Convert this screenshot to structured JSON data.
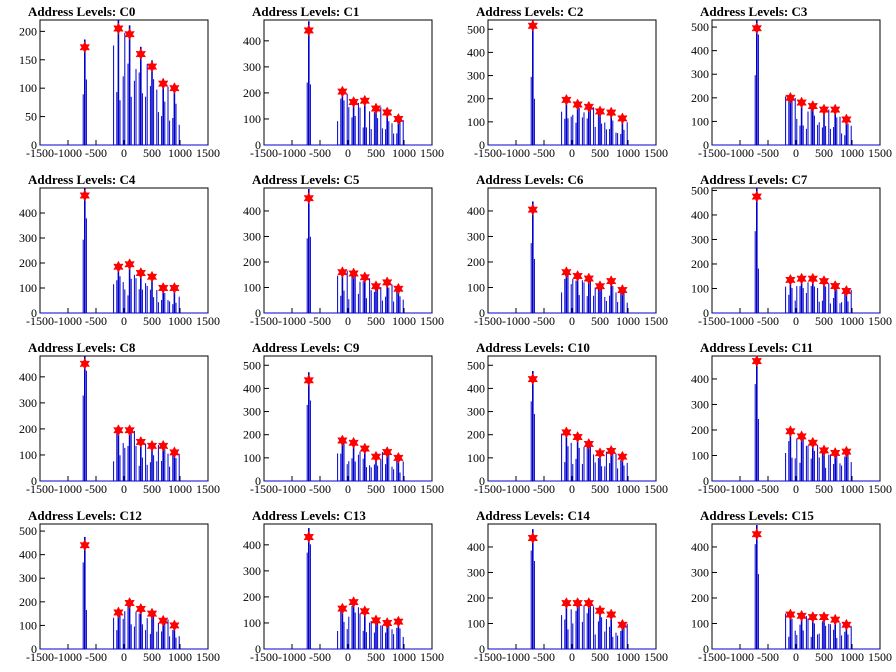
{
  "chart_data": [
    {
      "type": "bar",
      "title": "Address Levels: C0",
      "xlim": [
        -1500,
        1500
      ],
      "ylim": [
        0,
        220
      ],
      "x_ticks": [
        -1500,
        -1000,
        -500,
        0,
        500,
        1000,
        1500
      ],
      "y_ticks": [
        0,
        50,
        100,
        150,
        200
      ],
      "peaks": [
        {
          "x": -700,
          "y": 172
        },
        {
          "x": -100,
          "y": 205
        },
        {
          "x": 100,
          "y": 195
        },
        {
          "x": 300,
          "y": 160
        },
        {
          "x": 500,
          "y": 138
        },
        {
          "x": 700,
          "y": 108
        },
        {
          "x": 900,
          "y": 100
        }
      ],
      "line_color": "#0000cc",
      "marker_color": "#ff0000"
    },
    {
      "type": "bar",
      "title": "Address Levels: C1",
      "xlim": [
        -1500,
        1500
      ],
      "ylim": [
        0,
        480
      ],
      "x_ticks": [
        -1500,
        -1000,
        -500,
        0,
        500,
        1000,
        1500
      ],
      "y_ticks": [
        0,
        100,
        200,
        300,
        400
      ],
      "peaks": [
        {
          "x": -700,
          "y": 440
        },
        {
          "x": -100,
          "y": 205
        },
        {
          "x": 100,
          "y": 165
        },
        {
          "x": 300,
          "y": 170
        },
        {
          "x": 500,
          "y": 140
        },
        {
          "x": 700,
          "y": 125
        },
        {
          "x": 900,
          "y": 100
        }
      ],
      "line_color": "#0000cc",
      "marker_color": "#ff0000"
    },
    {
      "type": "bar",
      "title": "Address Levels: C2",
      "xlim": [
        -1500,
        1500
      ],
      "ylim": [
        0,
        540
      ],
      "x_ticks": [
        -1500,
        -1000,
        -500,
        0,
        500,
        1000,
        1500
      ],
      "y_ticks": [
        0,
        100,
        200,
        300,
        400,
        500
      ],
      "peaks": [
        {
          "x": -700,
          "y": 515
        },
        {
          "x": -100,
          "y": 195
        },
        {
          "x": 100,
          "y": 175
        },
        {
          "x": 300,
          "y": 165
        },
        {
          "x": 500,
          "y": 145
        },
        {
          "x": 700,
          "y": 140
        },
        {
          "x": 900,
          "y": 115
        }
      ],
      "line_color": "#0000cc",
      "marker_color": "#ff0000"
    },
    {
      "type": "bar",
      "title": "Address Levels: C3",
      "xlim": [
        -1500,
        1500
      ],
      "ylim": [
        0,
        530
      ],
      "x_ticks": [
        -1500,
        -1000,
        -500,
        0,
        500,
        1000,
        1500
      ],
      "y_ticks": [
        0,
        100,
        200,
        300,
        400,
        500
      ],
      "peaks": [
        {
          "x": -700,
          "y": 495
        },
        {
          "x": -100,
          "y": 200
        },
        {
          "x": 100,
          "y": 180
        },
        {
          "x": 300,
          "y": 165
        },
        {
          "x": 500,
          "y": 150
        },
        {
          "x": 700,
          "y": 150
        },
        {
          "x": 900,
          "y": 108
        }
      ],
      "line_color": "#0000cc",
      "marker_color": "#ff0000"
    },
    {
      "type": "bar",
      "title": "Address Levels: C4",
      "xlim": [
        -1500,
        1500
      ],
      "ylim": [
        0,
        500
      ],
      "x_ticks": [
        -1500,
        -1000,
        -500,
        0,
        500,
        1000,
        1500
      ],
      "y_ticks": [
        0,
        100,
        200,
        300,
        400
      ],
      "peaks": [
        {
          "x": -700,
          "y": 470
        },
        {
          "x": -100,
          "y": 185
        },
        {
          "x": 100,
          "y": 195
        },
        {
          "x": 300,
          "y": 160
        },
        {
          "x": 500,
          "y": 145
        },
        {
          "x": 700,
          "y": 100
        },
        {
          "x": 900,
          "y": 100
        }
      ],
      "line_color": "#0000cc",
      "marker_color": "#ff0000"
    },
    {
      "type": "bar",
      "title": "Address Levels: C5",
      "xlim": [
        -1500,
        1500
      ],
      "ylim": [
        0,
        490
      ],
      "x_ticks": [
        -1500,
        -1000,
        -500,
        0,
        500,
        1000,
        1500
      ],
      "y_ticks": [
        0,
        100,
        200,
        300,
        400
      ],
      "peaks": [
        {
          "x": -700,
          "y": 450
        },
        {
          "x": -100,
          "y": 160
        },
        {
          "x": 100,
          "y": 155
        },
        {
          "x": 300,
          "y": 140
        },
        {
          "x": 500,
          "y": 105
        },
        {
          "x": 700,
          "y": 120
        },
        {
          "x": 900,
          "y": 95
        }
      ],
      "line_color": "#0000cc",
      "marker_color": "#ff0000"
    },
    {
      "type": "bar",
      "title": "Address Levels: C6",
      "xlim": [
        -1500,
        1500
      ],
      "ylim": [
        0,
        490
      ],
      "x_ticks": [
        -1500,
        -1000,
        -500,
        0,
        500,
        1000,
        1500
      ],
      "y_ticks": [
        0,
        100,
        200,
        300,
        400
      ],
      "peaks": [
        {
          "x": -700,
          "y": 405
        },
        {
          "x": -100,
          "y": 160
        },
        {
          "x": 100,
          "y": 145
        },
        {
          "x": 300,
          "y": 135
        },
        {
          "x": 500,
          "y": 105
        },
        {
          "x": 700,
          "y": 125
        },
        {
          "x": 900,
          "y": 90
        }
      ],
      "line_color": "#0000cc",
      "marker_color": "#ff0000"
    },
    {
      "type": "bar",
      "title": "Address Levels: C7",
      "xlim": [
        -1500,
        1500
      ],
      "ylim": [
        0,
        510
      ],
      "x_ticks": [
        -1500,
        -1000,
        -500,
        0,
        500,
        1000,
        1500
      ],
      "y_ticks": [
        0,
        100,
        200,
        300,
        400,
        500
      ],
      "peaks": [
        {
          "x": -700,
          "y": 475
        },
        {
          "x": -100,
          "y": 135
        },
        {
          "x": 100,
          "y": 140
        },
        {
          "x": 300,
          "y": 140
        },
        {
          "x": 500,
          "y": 130
        },
        {
          "x": 700,
          "y": 110
        },
        {
          "x": 900,
          "y": 90
        }
      ],
      "line_color": "#0000cc",
      "marker_color": "#ff0000"
    },
    {
      "type": "bar",
      "title": "Address Levels: C8",
      "xlim": [
        -1500,
        1500
      ],
      "ylim": [
        0,
        480
      ],
      "x_ticks": [
        -1500,
        -1000,
        -500,
        0,
        500,
        1000,
        1500
      ],
      "y_ticks": [
        0,
        100,
        200,
        300,
        400
      ],
      "peaks": [
        {
          "x": -700,
          "y": 450
        },
        {
          "x": -100,
          "y": 195
        },
        {
          "x": 100,
          "y": 195
        },
        {
          "x": 300,
          "y": 150
        },
        {
          "x": 500,
          "y": 135
        },
        {
          "x": 700,
          "y": 135
        },
        {
          "x": 900,
          "y": 110
        }
      ],
      "line_color": "#0000cc",
      "marker_color": "#ff0000"
    },
    {
      "type": "bar",
      "title": "Address Levels: C9",
      "xlim": [
        -1500,
        1500
      ],
      "ylim": [
        0,
        540
      ],
      "x_ticks": [
        -1500,
        -1000,
        -500,
        0,
        500,
        1000,
        1500
      ],
      "y_ticks": [
        0,
        100,
        200,
        300,
        400,
        500
      ],
      "peaks": [
        {
          "x": -700,
          "y": 435
        },
        {
          "x": -100,
          "y": 175
        },
        {
          "x": 100,
          "y": 165
        },
        {
          "x": 300,
          "y": 140
        },
        {
          "x": 500,
          "y": 105
        },
        {
          "x": 700,
          "y": 125
        },
        {
          "x": 900,
          "y": 100
        }
      ],
      "line_color": "#0000cc",
      "marker_color": "#ff0000"
    },
    {
      "type": "bar",
      "title": "Address Levels: C10",
      "xlim": [
        -1500,
        1500
      ],
      "ylim": [
        0,
        540
      ],
      "x_ticks": [
        -1500,
        -1000,
        -500,
        0,
        500,
        1000,
        1500
      ],
      "y_ticks": [
        0,
        100,
        200,
        300,
        400,
        500
      ],
      "peaks": [
        {
          "x": -700,
          "y": 440
        },
        {
          "x": -100,
          "y": 210
        },
        {
          "x": 100,
          "y": 190
        },
        {
          "x": 300,
          "y": 160
        },
        {
          "x": 500,
          "y": 120
        },
        {
          "x": 700,
          "y": 130
        },
        {
          "x": 900,
          "y": 105
        }
      ],
      "line_color": "#0000cc",
      "marker_color": "#ff0000"
    },
    {
      "type": "bar",
      "title": "Address Levels: C11",
      "xlim": [
        -1500,
        1500
      ],
      "ylim": [
        0,
        490
      ],
      "x_ticks": [
        -1500,
        -1000,
        -500,
        0,
        500,
        1000,
        1500
      ],
      "y_ticks": [
        0,
        100,
        200,
        300,
        400
      ],
      "peaks": [
        {
          "x": -700,
          "y": 470
        },
        {
          "x": -100,
          "y": 195
        },
        {
          "x": 100,
          "y": 175
        },
        {
          "x": 300,
          "y": 150
        },
        {
          "x": 500,
          "y": 120
        },
        {
          "x": 700,
          "y": 110
        },
        {
          "x": 900,
          "y": 115
        }
      ],
      "line_color": "#0000cc",
      "marker_color": "#ff0000"
    },
    {
      "type": "bar",
      "title": "Address Levels: C12",
      "xlim": [
        -1500,
        1500
      ],
      "ylim": [
        0,
        530
      ],
      "x_ticks": [
        -1500,
        -1000,
        -500,
        0,
        500,
        1000,
        1500
      ],
      "y_ticks": [
        0,
        100,
        200,
        300,
        400,
        500
      ],
      "peaks": [
        {
          "x": -700,
          "y": 440
        },
        {
          "x": -100,
          "y": 155
        },
        {
          "x": 100,
          "y": 195
        },
        {
          "x": 300,
          "y": 170
        },
        {
          "x": 500,
          "y": 150
        },
        {
          "x": 700,
          "y": 120
        },
        {
          "x": 900,
          "y": 100
        }
      ],
      "line_color": "#0000cc",
      "marker_color": "#ff0000"
    },
    {
      "type": "bar",
      "title": "Address Levels: C13",
      "xlim": [
        -1500,
        1500
      ],
      "ylim": [
        0,
        480
      ],
      "x_ticks": [
        -1500,
        -1000,
        -500,
        0,
        500,
        1000,
        1500
      ],
      "y_ticks": [
        0,
        100,
        200,
        300,
        400
      ],
      "peaks": [
        {
          "x": -700,
          "y": 430
        },
        {
          "x": -100,
          "y": 155
        },
        {
          "x": 100,
          "y": 180
        },
        {
          "x": 300,
          "y": 145
        },
        {
          "x": 500,
          "y": 110
        },
        {
          "x": 700,
          "y": 100
        },
        {
          "x": 900,
          "y": 105
        }
      ],
      "line_color": "#0000cc",
      "marker_color": "#ff0000"
    },
    {
      "type": "bar",
      "title": "Address Levels: C14",
      "xlim": [
        -1500,
        1500
      ],
      "ylim": [
        0,
        490
      ],
      "x_ticks": [
        -1500,
        -1000,
        -500,
        0,
        500,
        1000,
        1500
      ],
      "y_ticks": [
        0,
        100,
        200,
        300,
        400
      ],
      "peaks": [
        {
          "x": -700,
          "y": 435
        },
        {
          "x": -100,
          "y": 180
        },
        {
          "x": 100,
          "y": 180
        },
        {
          "x": 300,
          "y": 180
        },
        {
          "x": 500,
          "y": 150
        },
        {
          "x": 700,
          "y": 135
        },
        {
          "x": 900,
          "y": 95
        }
      ],
      "line_color": "#0000cc",
      "marker_color": "#ff0000"
    },
    {
      "type": "bar",
      "title": "Address Levels: C15",
      "xlim": [
        -1500,
        1500
      ],
      "ylim": [
        0,
        490
      ],
      "x_ticks": [
        -1500,
        -1000,
        -500,
        0,
        500,
        1000,
        1500
      ],
      "y_ticks": [
        0,
        100,
        200,
        300,
        400
      ],
      "peaks": [
        {
          "x": -700,
          "y": 450
        },
        {
          "x": -100,
          "y": 135
        },
        {
          "x": 100,
          "y": 130
        },
        {
          "x": 300,
          "y": 125
        },
        {
          "x": 500,
          "y": 125
        },
        {
          "x": 700,
          "y": 115
        },
        {
          "x": 900,
          "y": 95
        }
      ],
      "line_color": "#0000cc",
      "marker_color": "#ff0000"
    }
  ]
}
